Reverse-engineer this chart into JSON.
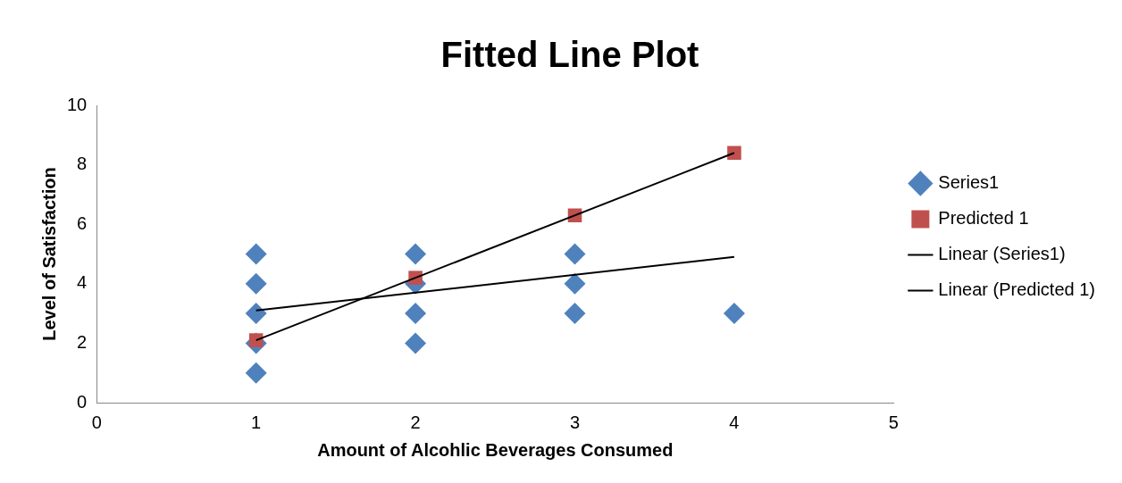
{
  "chart_data": {
    "type": "scatter",
    "title": "Fitted Line Plot",
    "xlabel": "Amount of Alcohlic Beverages Consumed",
    "ylabel": "Level of Satisfaction",
    "xlim": [
      0,
      5
    ],
    "xticks": [
      0,
      1,
      2,
      3,
      4,
      5
    ],
    "ylim": [
      0,
      10
    ],
    "yticks": [
      0,
      2,
      4,
      6,
      8,
      10
    ],
    "grid": false,
    "legend": "right",
    "series": [
      {
        "name": "Series1",
        "marker": "diamond",
        "color": "#4f81bd",
        "x": [
          1,
          1,
          1,
          1,
          1,
          2,
          2,
          2,
          2,
          3,
          3,
          3,
          4
        ],
        "values": [
          5,
          4,
          3,
          2,
          1,
          5,
          4,
          3,
          2,
          5,
          4,
          3,
          3
        ]
      },
      {
        "name": "Predicted 1",
        "marker": "square",
        "color": "#c0504d",
        "x": [
          1,
          2,
          3,
          4
        ],
        "values": [
          2.1,
          4.2,
          6.3,
          8.4
        ]
      },
      {
        "name": "Linear (Series1)",
        "type": "line",
        "marker": "none",
        "color": "#000000",
        "x": [
          1,
          4
        ],
        "values": [
          3.1,
          4.9
        ]
      },
      {
        "name": "Linear (Predicted 1)",
        "type": "line",
        "marker": "none",
        "color": "#000000",
        "x": [
          1,
          4
        ],
        "values": [
          2.1,
          8.4
        ]
      }
    ]
  }
}
